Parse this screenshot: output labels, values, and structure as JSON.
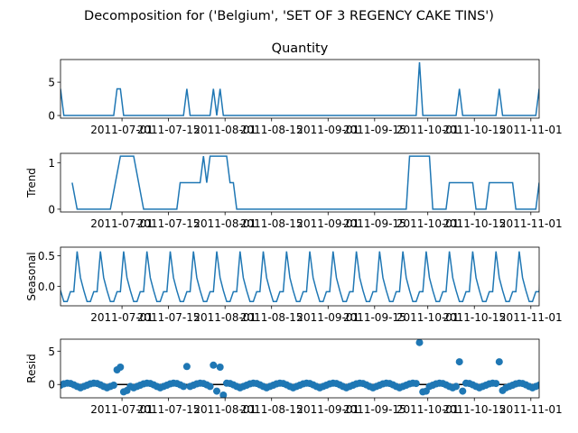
{
  "chart_data": {
    "type": "line",
    "suptitle": "Decomposition for ('Belgium', 'SET OF 3 REGENCY CAKE TINS')",
    "x_tick_labels": [
      "2011-07-01",
      "2011-07-15",
      "2011-08-01",
      "2011-08-15",
      "2011-09-01",
      "2011-09-15",
      "2011-10-01",
      "2011-10-15",
      "2011-11-01"
    ],
    "x_tick_values": [
      12.5,
      26.5,
      43.5,
      57.5,
      74.5,
      88.5,
      104.5,
      118.5,
      135.5
    ],
    "x_range": [
      -6,
      138
    ],
    "colors": {
      "line": "#1f77b4",
      "zero_line": "#000000",
      "axis": "#000000"
    },
    "panels": [
      {
        "id": "observed",
        "type": "line",
        "title": "Quantity",
        "ylabel": "",
        "ylim": [
          -0.4,
          8.4
        ],
        "yticks": [
          0,
          5
        ],
        "points": [
          [
            -6,
            4
          ],
          [
            -5,
            0
          ],
          [
            10,
            0
          ],
          [
            11,
            4
          ],
          [
            12,
            4
          ],
          [
            13,
            0
          ],
          [
            31,
            0
          ],
          [
            32,
            4
          ],
          [
            33,
            0
          ],
          [
            39,
            0
          ],
          [
            40,
            4
          ],
          [
            41,
            0
          ],
          [
            42,
            4
          ],
          [
            43,
            0
          ],
          [
            101,
            0
          ],
          [
            102,
            8
          ],
          [
            103,
            0
          ],
          [
            113,
            0
          ],
          [
            114,
            4
          ],
          [
            115,
            0
          ],
          [
            125,
            0
          ],
          [
            126,
            4
          ],
          [
            127,
            0
          ],
          [
            137,
            0
          ],
          [
            138,
            4
          ]
        ]
      },
      {
        "id": "trend",
        "type": "line",
        "title": "",
        "ylabel": "Trend",
        "ylim": [
          -0.06,
          1.2
        ],
        "yticks": [
          0,
          1
        ],
        "segments": [
          [
            [
              -2.5,
              0.57
            ],
            [
              -1,
              0
            ],
            [
              9,
              0
            ],
            [
              12,
              1.14
            ],
            [
              16,
              1.14
            ],
            [
              19,
              0
            ],
            [
              29,
              0
            ],
            [
              30,
              0.57
            ],
            [
              36,
              0.57
            ],
            [
              37,
              1.14
            ],
            [
              38,
              0.57
            ],
            [
              39,
              1.14
            ],
            [
              44,
              1.14
            ],
            [
              45,
              0.57
            ],
            [
              46,
              0.57
            ],
            [
              47,
              0
            ],
            [
              98,
              0
            ],
            [
              99,
              1.14
            ],
            [
              105,
              1.14
            ],
            [
              106,
              0
            ],
            [
              110,
              0
            ],
            [
              111,
              0.57
            ],
            [
              118,
              0.57
            ],
            [
              119,
              0
            ],
            [
              122,
              0
            ],
            [
              123,
              0.57
            ],
            [
              130,
              0.57
            ],
            [
              131,
              0
            ],
            [
              137,
              0
            ],
            [
              138,
              0.57
            ]
          ]
        ]
      },
      {
        "id": "seasonal",
        "type": "line",
        "title": "",
        "ylabel": "Seasonal",
        "ylim": [
          -0.32,
          0.64
        ],
        "yticks": [
          0.0,
          0.5
        ],
        "period": 7,
        "pattern": [
          0.57,
          0.14,
          -0.07,
          -0.25,
          -0.25,
          -0.09,
          -0.09
        ],
        "pattern_start": -1
      },
      {
        "id": "resid",
        "type": "scatter",
        "title": "",
        "ylabel": "Resid",
        "ylim": [
          -2.0,
          6.8
        ],
        "yticks": [
          0,
          5
        ],
        "zero_line": true,
        "baseline_values": [
          -0.5,
          -0.3,
          -0.1,
          0.1,
          0.2,
          0.15,
          -0.05,
          -0.3
        ],
        "outliers": [
          [
            11,
            2.2
          ],
          [
            12,
            2.6
          ],
          [
            32,
            2.7
          ],
          [
            40,
            2.9
          ],
          [
            42,
            2.6
          ],
          [
            102,
            6.3
          ],
          [
            114,
            3.4
          ],
          [
            126,
            3.4
          ]
        ],
        "dips": [
          [
            13,
            -1.1
          ],
          [
            14,
            -0.9
          ],
          [
            41,
            -1.0
          ],
          [
            43,
            -1.6
          ],
          [
            103,
            -1.1
          ],
          [
            104,
            -1.0
          ],
          [
            115,
            -1.0
          ],
          [
            127,
            -0.9
          ]
        ]
      }
    ]
  }
}
